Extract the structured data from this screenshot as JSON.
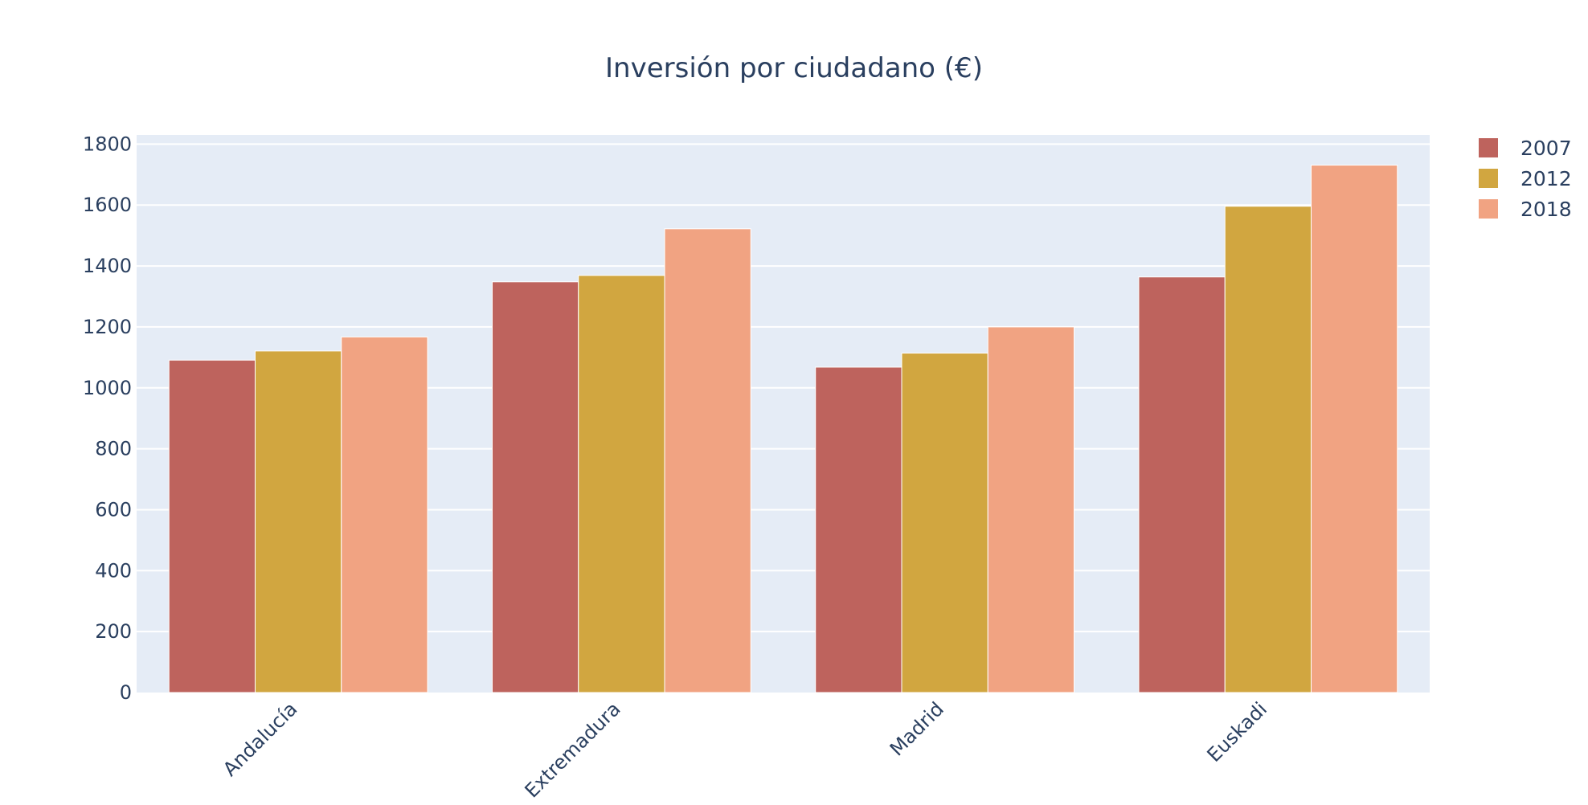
{
  "colors": {
    "background": "#ffffff",
    "plot_background": "#e5ecf6",
    "text": "#2a3f5f",
    "grid": "#ffffff"
  },
  "chart_data": {
    "type": "bar",
    "title": "Inversión por ciudadano (€)",
    "xlabel": "",
    "ylabel": "",
    "categories": [
      "Andalucía",
      "Extremadura",
      "Madrid",
      "Euskadi"
    ],
    "series": [
      {
        "name": "2007",
        "color": "#be635d",
        "values": [
          1091,
          1348,
          1068,
          1364
        ]
      },
      {
        "name": "2012",
        "color": "#d1a640",
        "values": [
          1121,
          1369,
          1114,
          1596
        ]
      },
      {
        "name": "2018",
        "color": "#f1a382",
        "values": [
          1167,
          1522,
          1200,
          1731
        ]
      }
    ],
    "ylim": [
      0,
      1830
    ],
    "yticks": [
      0,
      200,
      400,
      600,
      800,
      1000,
      1200,
      1400,
      1600,
      1800
    ],
    "grid": true,
    "legend": "top-right",
    "xtick_rotation": -45
  }
}
